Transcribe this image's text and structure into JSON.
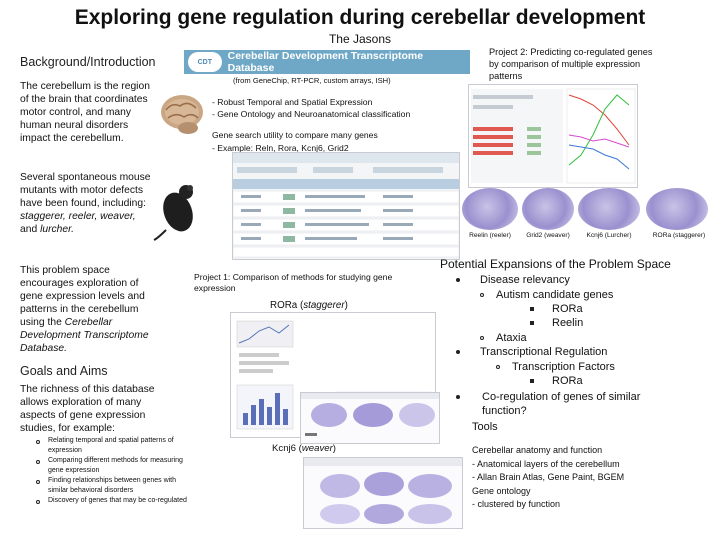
{
  "title": "Exploring gene regulation during cerebellar development",
  "authors": "The Jasons",
  "background": {
    "heading": "Background/Introduction",
    "para1": "The cerebellum is the region of the brain that coordinates motor control, and many human neural disorders impact the cerebellum.",
    "para2_a": "Several spontaneous mouse mutants with motor defects have been found, including:",
    "para2_b": "staggerer, reeler, weaver,",
    "para2_c": "and",
    "para2_d": "lurcher.",
    "para3_a": "This problem space encourages exploration of gene expression levels and patterns in the cerebellum using the",
    "para3_b": "Cerebellar Development Transcriptome Database."
  },
  "goals": {
    "heading": "Goals and Aims",
    "intro": "The richness of this database allows exploration of many aspects of gene expression studies, for example:",
    "items": [
      "Relating temporal and spatial patterns of expression",
      "Comparing different methods for measuring gene expression",
      "Finding relationships between genes with similar behavioral disorders",
      "Discovery of genes that may be co-regulated"
    ]
  },
  "database": {
    "banner": "Cerebellar Development Transcriptome Database",
    "logo": "CDT",
    "methods": "(from GeneChip, RT-PCR, custom arrays, ISH)",
    "features": [
      "- Robust Temporal and Spatial Expression",
      "- Gene Ontology and Neuroanatomical classification"
    ],
    "search1": "Gene search utility to compare many genes",
    "search2": "- Example: Reln, Rora, Kcnj6, Grid2"
  },
  "project1": {
    "text": "Project 1: Comparison of methods for studying gene expression",
    "label_a": "RORa (",
    "label_b": "staggerer",
    "label_c": ")",
    "kcnj6_a": "Kcnj6 (",
    "kcnj6_b": "weaver",
    "kcnj6_c": ")"
  },
  "project2": {
    "text": "Project 2: Predicting co-regulated genes by comparison of multiple expression patterns",
    "slices": [
      "Reelin (reeler)",
      "Grid2 (weaver)",
      "Kcnj6 (Lurcher)",
      "RORa (staggerer)"
    ]
  },
  "expansions": {
    "heading": "Potential Expansions of the Problem Space",
    "disease": "Disease relevancy",
    "autism": "Autism candidate genes",
    "rora": "RORa",
    "reelin": "Reelin",
    "ataxia": "Ataxia",
    "transcriptional": "Transcriptional Regulation",
    "factors": "Transcription Factors",
    "rora2": "RORa",
    "coreg": "Co-regulation of genes of similar function?",
    "tools": "Tools"
  },
  "anatomy": {
    "heading": "Cerebellar anatomy and function",
    "lines": [
      "- Anatomical layers of the cerebellum",
      "- Allan Brain Atlas, Gene Paint, BGEM",
      "Gene ontology",
      "- clustered by function"
    ]
  },
  "colors": {
    "banner": "#6fa7c6",
    "chart_line_red": "#e0443a",
    "chart_line_green": "#2fbf3d",
    "chart_line_magenta": "#d94ad0",
    "ish_purple": "#9b90cf"
  },
  "icons": [
    "brain-icon",
    "mouse-icon"
  ]
}
